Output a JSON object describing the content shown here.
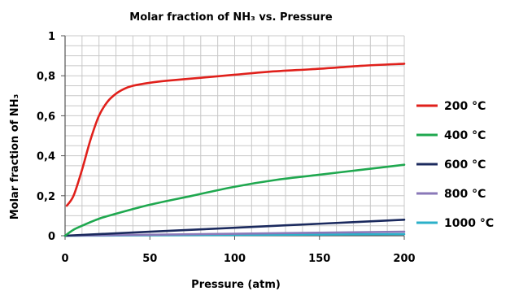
{
  "chart_data": {
    "type": "line",
    "title": "Molar fraction of NH₃ vs. Pressure",
    "xlabel": "Pressure (atm)",
    "ylabel": "Molar fraction of NH₃",
    "xlim": [
      0,
      200
    ],
    "ylim": [
      0,
      1
    ],
    "x_ticks": [
      "0",
      "50",
      "100",
      "150",
      "200"
    ],
    "y_ticks": [
      "0",
      "0,2",
      "0,4",
      "0,6",
      "0,8",
      "1"
    ],
    "grid": true,
    "legend_position": "right",
    "series": [
      {
        "name": "200 °C",
        "color": "#e0201b",
        "x": [
          1,
          5,
          10,
          15,
          20,
          25,
          30,
          35,
          40,
          50,
          60,
          80,
          100,
          120,
          150,
          175,
          200
        ],
        "y": [
          0.15,
          0.2,
          0.33,
          0.48,
          0.6,
          0.67,
          0.71,
          0.735,
          0.75,
          0.765,
          0.775,
          0.79,
          0.805,
          0.82,
          0.835,
          0.85,
          0.86
        ]
      },
      {
        "name": "400 °C",
        "color": "#1fa84f",
        "x": [
          0,
          5,
          10,
          20,
          30,
          50,
          75,
          100,
          125,
          150,
          175,
          200
        ],
        "y": [
          0.0,
          0.03,
          0.05,
          0.085,
          0.11,
          0.155,
          0.2,
          0.245,
          0.28,
          0.305,
          0.33,
          0.355
        ]
      },
      {
        "name": "600 °C",
        "color": "#1b2a5e",
        "x": [
          0,
          25,
          50,
          100,
          150,
          200
        ],
        "y": [
          0.0,
          0.01,
          0.02,
          0.04,
          0.06,
          0.08
        ]
      },
      {
        "name": "800 °C",
        "color": "#8a78b8",
        "x": [
          0,
          50,
          100,
          150,
          200
        ],
        "y": [
          0.0,
          0.005,
          0.01,
          0.015,
          0.02
        ]
      },
      {
        "name": "1000 °C",
        "color": "#2bb0c9",
        "x": [
          0,
          50,
          100,
          150,
          200
        ],
        "y": [
          0.0,
          0.002,
          0.004,
          0.006,
          0.008
        ]
      }
    ]
  }
}
